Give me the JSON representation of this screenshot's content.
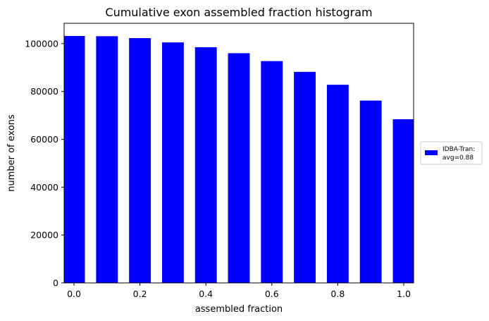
{
  "chart_data": {
    "type": "bar",
    "title": "Cumulative exon assembled fraction histogram",
    "xlabel": "assembled fraction",
    "ylabel": "number of exons",
    "xlim": [
      -0.03,
      1.03
    ],
    "ylim": [
      0,
      108500
    ],
    "x_ticks": [
      0.0,
      0.2,
      0.4,
      0.6,
      0.8,
      1.0
    ],
    "x_tick_labels": [
      "0.0",
      "0.2",
      "0.4",
      "0.6",
      "0.8",
      "1.0"
    ],
    "y_ticks": [
      0,
      20000,
      40000,
      60000,
      80000,
      100000
    ],
    "y_tick_labels": [
      "0",
      "20000",
      "40000",
      "60000",
      "80000",
      "100000"
    ],
    "bar_width": 0.066,
    "bar_color": "#0000ff",
    "grid": false,
    "legend_placement": "right-outside",
    "series": [
      {
        "legend_lines": [
          "IDBA-Tran:",
          "avg=0.88"
        ],
        "x": [
          0.0,
          0.1,
          0.2,
          0.3,
          0.4,
          0.5,
          0.6,
          0.7,
          0.8,
          0.9,
          1.0
        ],
        "values": [
          103200,
          103100,
          102300,
          100500,
          98500,
          96000,
          92700,
          88200,
          82800,
          76200,
          68400
        ]
      }
    ]
  }
}
